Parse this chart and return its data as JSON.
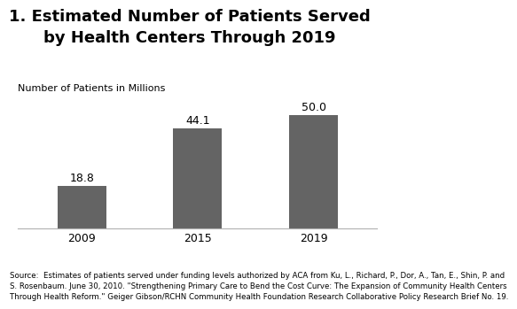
{
  "title_line1": "1. Estimated Number of Patients Served",
  "title_line2": "by Health Centers Through 2019",
  "ylabel": "Number of Patients in Millions",
  "categories": [
    "2009",
    "2015",
    "2019"
  ],
  "values": [
    18.8,
    44.1,
    50.0
  ],
  "bar_color": "#646464",
  "bar_width": 0.42,
  "ylim": [
    0,
    58
  ],
  "value_labels": [
    "18.8",
    "44.1",
    "50.0"
  ],
  "source_text": "Source:  Estimates of patients served under funding levels authorized by ACA from Ku, L., Richard, P., Dor, A., Tan, E., Shin, P. and\nS. Rosenbaum. June 30, 2010. \"Strengthening Primary Care to Bend the Cost Curve: The Expansion of Community Health Centers\nThrough Health Reform.\" Geiger Gibson/RCHN Community Health Foundation Research Collaborative Policy Research Brief No. 19.",
  "title_fontsize": 13,
  "label_fontsize": 9,
  "ylabel_fontsize": 8,
  "source_fontsize": 6.2,
  "bar_label_fontsize": 9,
  "background_color": "#ffffff"
}
